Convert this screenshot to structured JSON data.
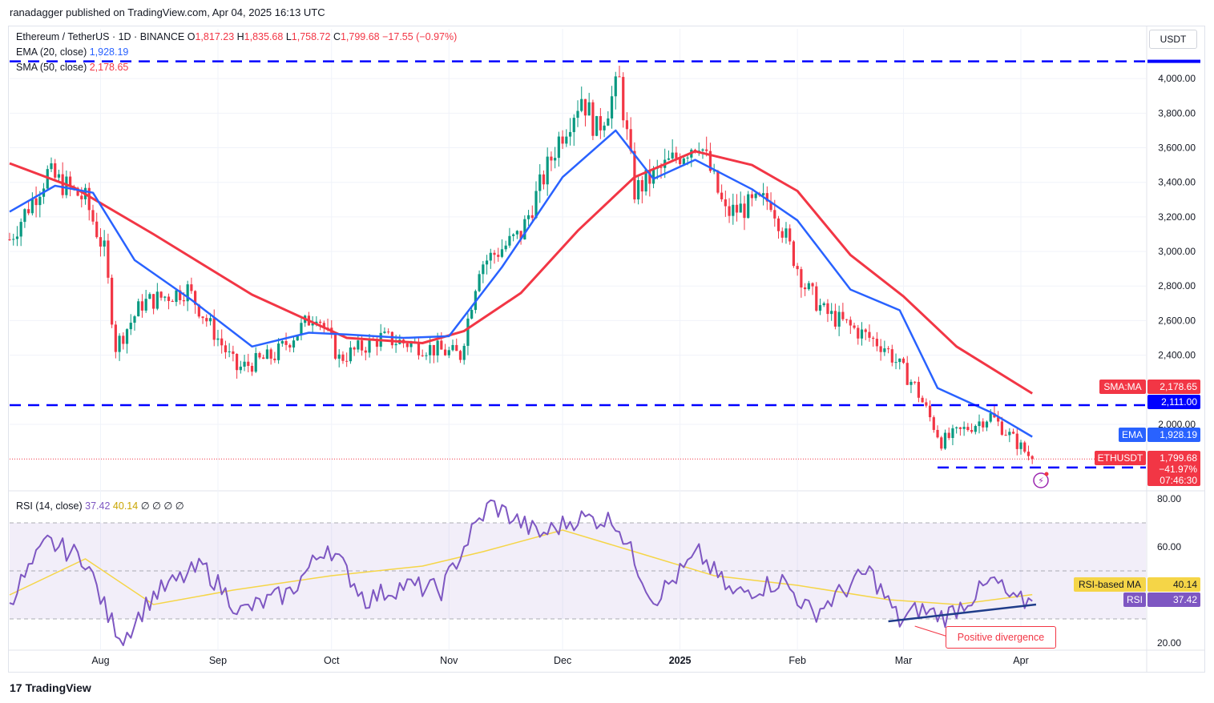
{
  "publisher": "ranadagger published on TradingView.com, Apr 04, 2025 16:13 UTC",
  "branding": "TradingView",
  "currency": "USDT",
  "legend": {
    "symbol": "Ethereum / TetherUS · 1D · BINANCE",
    "open_label": "O",
    "open": "1,817.23",
    "high_label": "H",
    "high": "1,835.68",
    "low_label": "L",
    "low": "1,758.72",
    "close_label": "C",
    "close": "1,799.68",
    "change": "−17.55 (−0.97%)",
    "ema_label": "EMA (20, close)",
    "ema_value": "1,928.19",
    "sma_label": "SMA (50, close)",
    "sma_value": "2,178.65",
    "rsi_label": "RSI (14, close)",
    "rsi_value": "37.42",
    "rsi_ma_value": "40.14",
    "rsi_extra": "∅ ∅ ∅ ∅"
  },
  "annotation": "Positive divergence",
  "price_tags": {
    "sma_name": "SMA:MA",
    "sma_value": "2,178.65",
    "level_value": "2,111.00",
    "ema_name": "EMA",
    "ema_value": "1,928.19",
    "last_name": "ETHUSDT",
    "last_value": "1,799.68",
    "last_pct": "−41.97%",
    "countdown": "07:46:30",
    "rsi_ma_name": "RSI-based MA",
    "rsi_ma_value": "40.14",
    "rsi_name": "RSI",
    "rsi_value": "37.42"
  },
  "colors": {
    "up": "#089981",
    "down": "#f23645",
    "ema": "#2962ff",
    "sma": "#f23645",
    "rsi": "#7e57c2",
    "rsi_ma": "#f5d547",
    "level": "#0000ff",
    "grid": "#f0f3fa"
  },
  "chart_data": {
    "type": "candlestick",
    "x_tick_labels": [
      "Aug",
      "Sep",
      "Oct",
      "Nov",
      "Dec",
      "2025",
      "Feb",
      "Mar",
      "Apr"
    ],
    "x_tick_dates": [
      "2024-08-01",
      "2024-09-01",
      "2024-10-01",
      "2024-11-01",
      "2024-12-01",
      "2025-01-01",
      "2025-02-01",
      "2025-03-01",
      "2025-04-01"
    ],
    "x_range": [
      "2024-07-08",
      "2025-05-04"
    ],
    "y_tick_labels": [
      "4,000.00",
      "3,800.00",
      "3,600.00",
      "3,400.00",
      "3,200.00",
      "3,000.00",
      "2,800.00",
      "2,600.00",
      "2,400.00",
      "2,000.00"
    ],
    "y_ticks": [
      4000,
      3800,
      3600,
      3400,
      3200,
      3000,
      2800,
      2600,
      2400,
      2000
    ],
    "y_range": [
      1620,
      4200
    ],
    "horizontal_levels": [
      4100,
      2111,
      1750
    ],
    "price_series": {
      "name": "ETHUSDT",
      "dates": [
        "2024-07-08",
        "2024-07-18",
        "2024-07-28",
        "2024-08-02",
        "2024-08-05",
        "2024-08-12",
        "2024-08-24",
        "2024-09-06",
        "2024-09-16",
        "2024-09-27",
        "2024-10-03",
        "2024-10-14",
        "2024-10-25",
        "2024-11-04",
        "2024-11-09",
        "2024-11-20",
        "2024-11-30",
        "2024-12-06",
        "2024-12-10",
        "2024-12-16",
        "2024-12-20",
        "2025-01-06",
        "2025-01-13",
        "2025-01-25",
        "2025-02-03",
        "2025-02-08",
        "2025-02-24",
        "2025-03-04",
        "2025-03-11",
        "2025-03-24",
        "2025-04-04"
      ],
      "close": [
        3070,
        3450,
        3300,
        3000,
        2450,
        2700,
        2780,
        2320,
        2400,
        2650,
        2380,
        2500,
        2450,
        2400,
        2920,
        3100,
        3650,
        3900,
        3700,
        3980,
        3350,
        3650,
        3220,
        3300,
        2800,
        2650,
        2450,
        2220,
        1900,
        2050,
        1799.68
      ]
    },
    "ema": {
      "name": "EMA (20, close)",
      "dates": [
        "2024-07-08",
        "2024-07-20",
        "2024-07-30",
        "2024-08-10",
        "2024-08-25",
        "2024-09-10",
        "2024-09-25",
        "2024-10-05",
        "2024-10-20",
        "2024-11-01",
        "2024-11-15",
        "2024-12-01",
        "2024-12-15",
        "2024-12-25",
        "2025-01-05",
        "2025-01-20",
        "2025-02-01",
        "2025-02-15",
        "2025-02-28",
        "2025-03-10",
        "2025-03-24",
        "2025-04-04"
      ],
      "values": [
        3230,
        3380,
        3340,
        2950,
        2720,
        2450,
        2530,
        2520,
        2500,
        2510,
        2910,
        3430,
        3700,
        3420,
        3530,
        3360,
        3180,
        2780,
        2660,
        2210,
        2070,
        1928.19
      ]
    },
    "sma": {
      "name": "SMA (50, close)",
      "dates": [
        "2024-07-08",
        "2024-07-25",
        "2024-08-15",
        "2024-09-10",
        "2024-10-05",
        "2024-10-25",
        "2024-11-05",
        "2024-11-20",
        "2024-12-05",
        "2024-12-20",
        "2025-01-05",
        "2025-01-20",
        "2025-02-01",
        "2025-02-15",
        "2025-03-01",
        "2025-03-15",
        "2025-04-04"
      ],
      "values": [
        3510,
        3370,
        3100,
        2750,
        2500,
        2470,
        2540,
        2760,
        3120,
        3430,
        3580,
        3500,
        3350,
        2980,
        2740,
        2450,
        2178.65
      ]
    },
    "rsi": {
      "name": "RSI (14, close)",
      "y_ticks": [
        80,
        60,
        20
      ],
      "y_tick_labels": [
        "80.00",
        "60.00",
        "20.00"
      ],
      "y_range": [
        17,
        83
      ],
      "band": [
        30,
        70
      ],
      "mid": 50,
      "dates": [
        "2024-07-08",
        "2024-07-18",
        "2024-07-28",
        "2024-08-03",
        "2024-08-07",
        "2024-08-15",
        "2024-08-28",
        "2024-09-07",
        "2024-09-20",
        "2024-09-30",
        "2024-10-10",
        "2024-10-20",
        "2024-10-30",
        "2024-11-07",
        "2024-11-12",
        "2024-11-25",
        "2024-12-05",
        "2024-12-15",
        "2024-12-25",
        "2025-01-06",
        "2025-01-15",
        "2025-01-28",
        "2025-02-05",
        "2025-02-20",
        "2025-02-28",
        "2025-03-05",
        "2025-03-12",
        "2025-03-25",
        "2025-03-30",
        "2025-04-04"
      ],
      "values": [
        38,
        62,
        55,
        31,
        22,
        40,
        52,
        33,
        41,
        61,
        38,
        44,
        42,
        66,
        78,
        65,
        72,
        71,
        38,
        57,
        40,
        46,
        32,
        50,
        29,
        34,
        31,
        46,
        37,
        37.42
      ],
      "ma_name": "RSI-based MA",
      "ma_dates": [
        "2024-07-08",
        "2024-07-28",
        "2024-08-15",
        "2024-09-05",
        "2024-10-01",
        "2024-10-25",
        "2024-11-10",
        "2024-12-01",
        "2024-12-20",
        "2025-01-10",
        "2025-02-01",
        "2025-02-25",
        "2025-03-15",
        "2025-04-04"
      ],
      "ma_values": [
        40,
        55,
        36,
        42,
        48,
        52,
        58,
        67,
        58,
        48,
        44,
        38,
        36,
        40.14
      ],
      "divergence_line": [
        [
          "2025-02-25",
          29
        ],
        [
          "2025-04-05",
          36
        ]
      ]
    }
  }
}
